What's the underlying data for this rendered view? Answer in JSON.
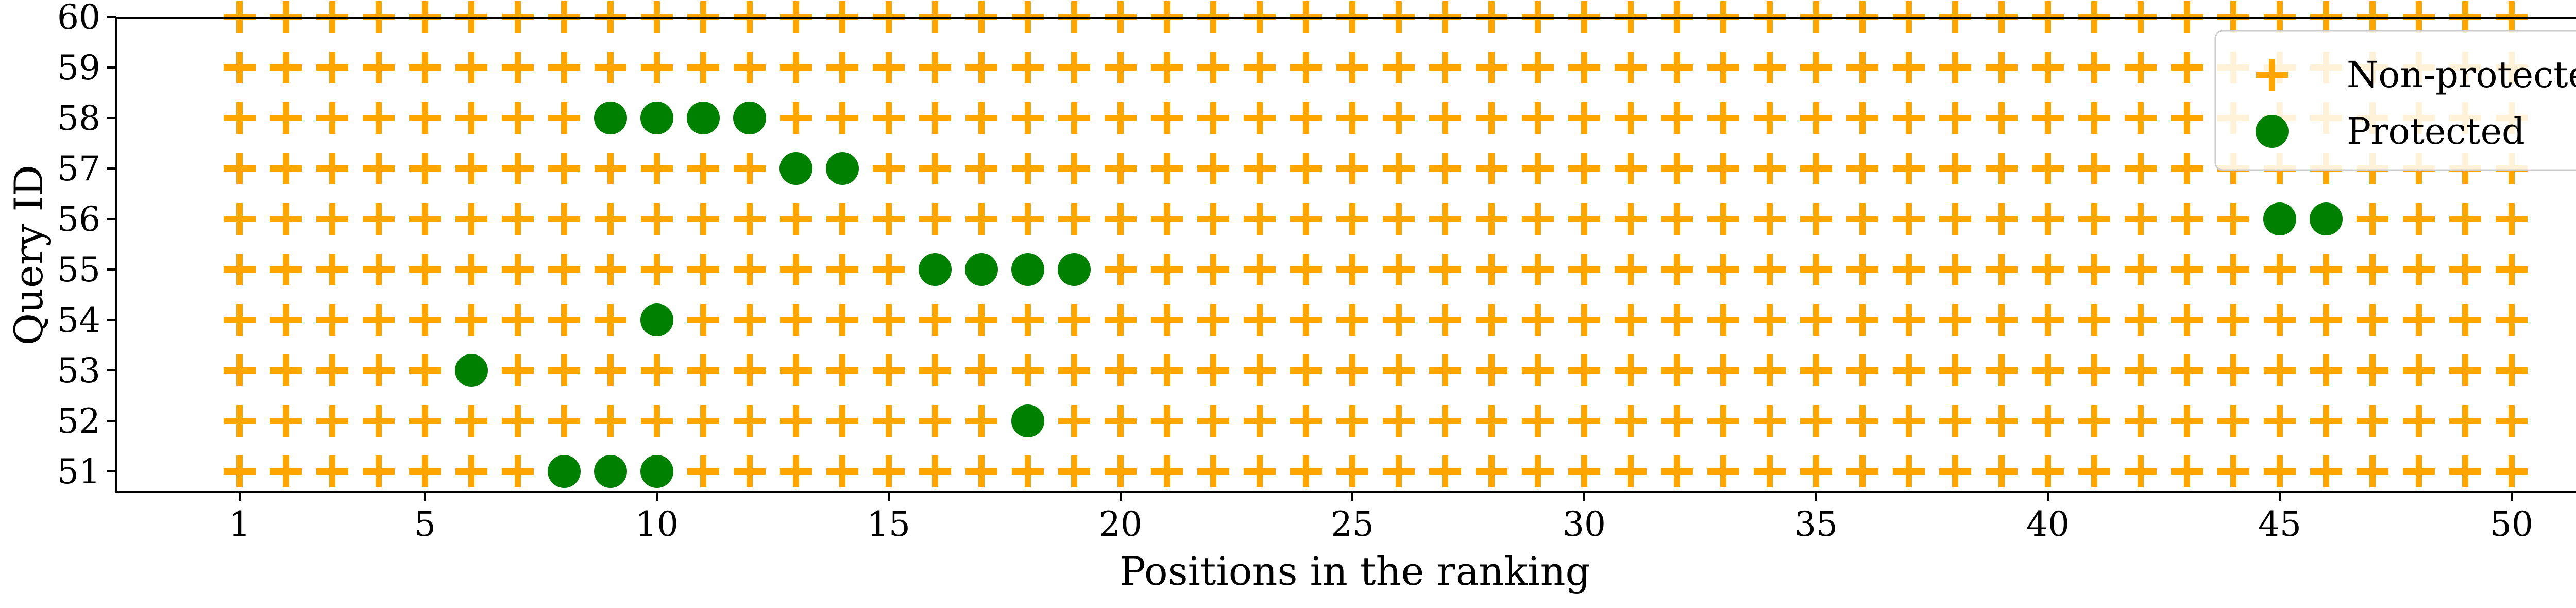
{
  "chart_data": {
    "type": "scatter",
    "title": "",
    "xlabel": "Positions in the ranking",
    "ylabel": "Query ID",
    "xticks": [
      1,
      5,
      10,
      15,
      20,
      25,
      30,
      35,
      40,
      45,
      50
    ],
    "yticks": [
      51,
      52,
      53,
      54,
      55,
      56,
      57,
      58,
      59,
      60
    ],
    "xlim": [
      1,
      50
    ],
    "ylim": [
      51,
      60
    ],
    "grid": false,
    "legend_position": "top-right",
    "series": [
      {
        "name": "Non-protected",
        "marker": "plus",
        "color": "#FFA500",
        "description": "all grid positions 1-50 for queries 51-60 not marked as protected"
      },
      {
        "name": "Protected",
        "marker": "circle",
        "color": "#008000",
        "points": [
          {
            "query": 51,
            "positions": [
              8,
              9,
              10
            ]
          },
          {
            "query": 52,
            "positions": [
              18
            ]
          },
          {
            "query": 53,
            "positions": [
              6
            ]
          },
          {
            "query": 54,
            "positions": [
              10
            ]
          },
          {
            "query": 55,
            "positions": [
              16,
              17,
              18,
              19
            ]
          },
          {
            "query": 56,
            "positions": [
              45,
              46
            ]
          },
          {
            "query": 57,
            "positions": [
              13,
              14
            ]
          },
          {
            "query": 58,
            "positions": [
              9,
              10,
              11,
              12
            ]
          },
          {
            "query": 59,
            "positions": []
          },
          {
            "query": 60,
            "positions": []
          }
        ]
      }
    ]
  }
}
